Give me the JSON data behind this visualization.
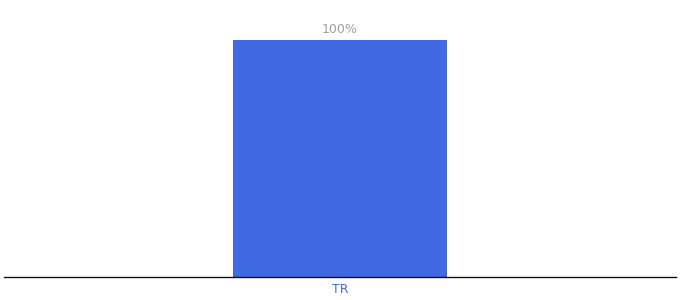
{
  "categories": [
    "TR"
  ],
  "values": [
    100
  ],
  "bar_color": "#4169E1",
  "label_color": "#a0a0a0",
  "xtick_color": "#4169E1",
  "bar_label": "100%",
  "background_color": "#ffffff",
  "ylim": [
    0,
    115
  ],
  "xlim": [
    -1.1,
    1.1
  ],
  "bar_width": 0.7,
  "label_fontsize": 9,
  "tick_fontsize": 9
}
